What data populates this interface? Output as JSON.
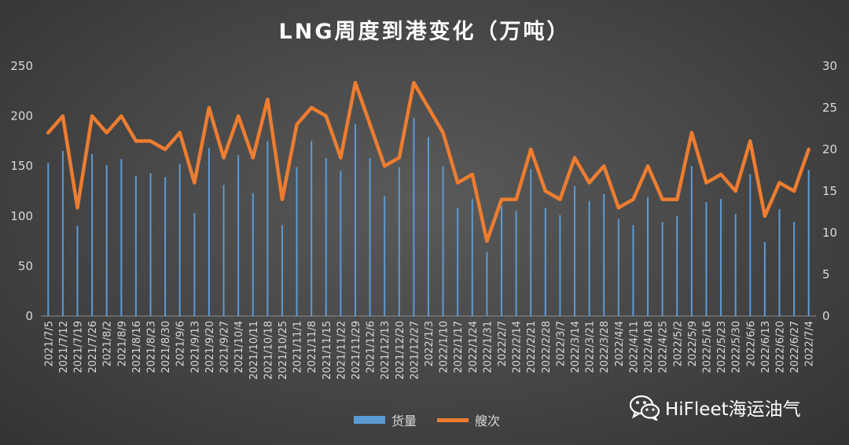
{
  "title": "LNG周度到港变化（万吨）",
  "watermark": {
    "text": "HiFleet海运油气",
    "icon": "wechat-icon"
  },
  "colors": {
    "bar": "#5b9bd5",
    "line": "#ed7d31",
    "text": "#d9d9d9"
  },
  "chart_data": {
    "type": "bar",
    "title": "LNG周度到港变化（万吨）",
    "legend_position": "bottom",
    "grid": false,
    "categories": [
      "2021/7/5",
      "2021/7/12",
      "2021/7/19",
      "2021/7/26",
      "2021/8/2",
      "2021/8/9",
      "2021/8/16",
      "2021/8/23",
      "2021/8/30",
      "2021/9/6",
      "2021/9/13",
      "2021/9/20",
      "2021/9/27",
      "2021/10/4",
      "2021/10/11",
      "2021/10/18",
      "2021/10/25",
      "2021/11/1",
      "2021/11/8",
      "2021/11/15",
      "2021/11/22",
      "2021/11/29",
      "2021/12/6",
      "2021/12/13",
      "2021/12/20",
      "2021/12/27",
      "2022/1/3",
      "2022/1/10",
      "2022/1/17",
      "2022/1/24",
      "2022/1/31",
      "2022/2/7",
      "2022/2/14",
      "2022/2/21",
      "2022/2/28",
      "2022/3/7",
      "2022/3/14",
      "2022/3/21",
      "2022/3/28",
      "2022/4/4",
      "2022/4/11",
      "2022/4/18",
      "2022/4/25",
      "2022/5/2",
      "2022/5/9",
      "2022/5/16",
      "2022/5/23",
      "2022/5/30",
      "2022/6/6",
      "2022/6/13",
      "2022/6/20",
      "2022/6/27",
      "2022/7/4"
    ],
    "y_left": {
      "ylim": [
        0,
        250
      ],
      "ticks": [
        0,
        50,
        100,
        150,
        200,
        250
      ]
    },
    "y_right": {
      "ylim": [
        0,
        30
      ],
      "ticks": [
        0,
        5,
        10,
        15,
        20,
        25,
        30
      ]
    },
    "series": [
      {
        "name": "货量",
        "type": "bar",
        "axis": "left",
        "values": [
          153,
          165,
          90,
          162,
          151,
          157,
          140,
          143,
          139,
          152,
          103,
          168,
          131,
          161,
          123,
          175,
          91,
          149,
          175,
          158,
          145,
          192,
          158,
          120,
          149,
          198,
          179,
          150,
          108,
          117,
          64,
          110,
          105,
          147,
          108,
          101,
          130,
          115,
          122,
          97,
          91,
          119,
          94,
          100,
          150,
          114,
          117,
          102,
          142,
          74,
          107,
          94,
          146
        ]
      },
      {
        "name": "艘次",
        "type": "line",
        "axis": "right",
        "values": [
          22,
          24,
          13,
          24,
          22,
          24,
          21,
          21,
          20,
          22,
          16,
          25,
          19,
          24,
          19,
          26,
          14,
          23,
          25,
          24,
          19,
          28,
          23,
          18,
          19,
          28,
          25,
          22,
          16,
          17,
          9,
          14,
          14,
          20,
          15,
          14,
          19,
          16,
          18,
          13,
          14,
          18,
          14,
          14,
          22,
          16,
          17,
          15,
          21,
          12,
          16,
          15,
          20
        ]
      }
    ]
  }
}
